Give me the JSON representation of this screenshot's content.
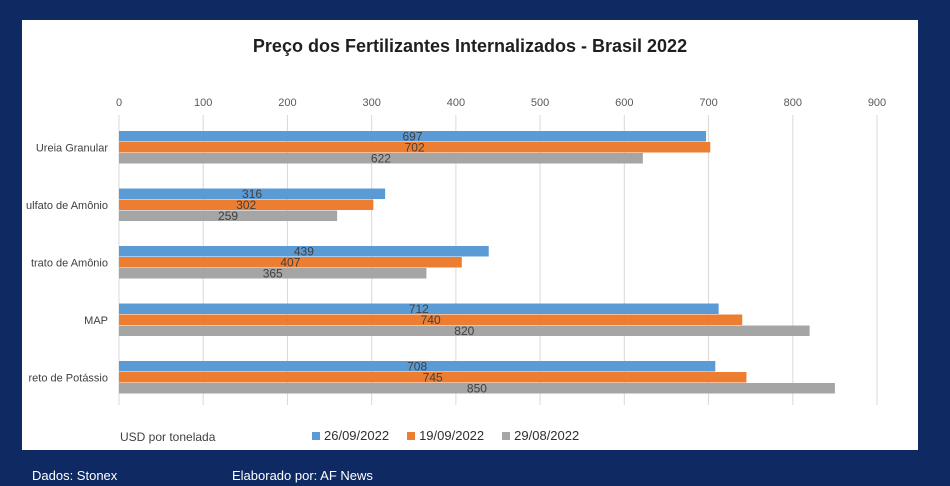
{
  "chart_data": {
    "type": "bar",
    "orientation": "horizontal",
    "title": "Preço dos Fertilizantes Internalizados - Brasil 2022",
    "categories": [
      "Ureia Granular",
      "ulfato de Amônio",
      "trato de Amônio",
      "MAP",
      "reto de Potássio"
    ],
    "series": [
      {
        "name": "26/09/2022",
        "color": "#5b9bd5",
        "values": [
          697,
          316,
          439,
          712,
          708
        ]
      },
      {
        "name": "19/09/2022",
        "color": "#ed7d31",
        "values": [
          702,
          302,
          407,
          740,
          745
        ]
      },
      {
        "name": "29/08/2022",
        "color": "#a5a5a5",
        "values": [
          622,
          259,
          365,
          820,
          850
        ]
      }
    ],
    "xlim": [
      0,
      900
    ],
    "xticks": [
      0,
      100,
      200,
      300,
      400,
      500,
      600,
      700,
      800,
      900
    ],
    "axis_position": "top",
    "grid": true,
    "legend_position": "bottom",
    "unit_label": "USD por tonelada"
  },
  "footer": {
    "source": "Dados: Stonex",
    "author": "Elaborado por: AF News"
  }
}
